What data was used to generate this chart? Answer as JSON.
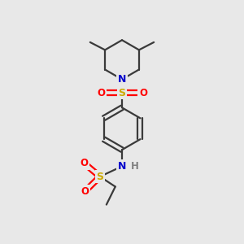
{
  "bg_color": "#e8e8e8",
  "atom_colors": {
    "C": "#000000",
    "N": "#0000cc",
    "S": "#ccaa00",
    "O": "#ff0000",
    "H": "#808080"
  },
  "bond_color": "#3a3a3a",
  "line_width": 1.6,
  "figsize": [
    3.0,
    3.0
  ],
  "dpi": 100,
  "xlim": [
    0,
    10
  ],
  "ylim": [
    0,
    10
  ]
}
